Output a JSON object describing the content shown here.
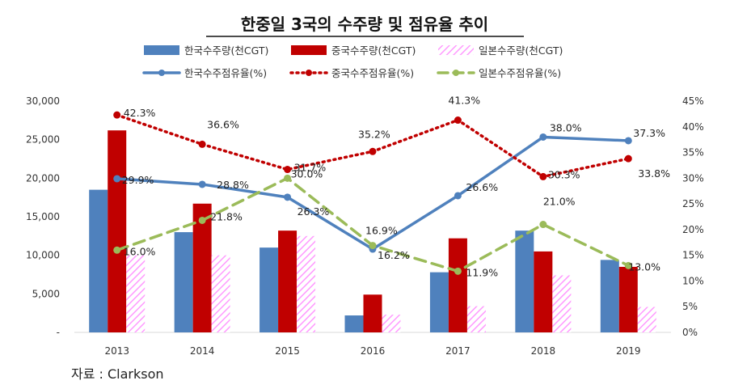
{
  "source": "자료 : Clarkson",
  "chart_data": {
    "type": "bar",
    "title": "한중일 3국의 수주량 및 점유율 추이",
    "categories": [
      "2013",
      "2014",
      "2015",
      "2016",
      "2017",
      "2018",
      "2019"
    ],
    "y_left": {
      "range": [
        0,
        30000
      ],
      "ticks": [
        "-",
        "5,000",
        "10,000",
        "15,000",
        "20,000",
        "25,000",
        "30,000"
      ]
    },
    "y_right": {
      "range": [
        0,
        45
      ],
      "ticks": [
        "0%",
        "5%",
        "10%",
        "15%",
        "20%",
        "25%",
        "30%",
        "35%",
        "40%",
        "45%"
      ]
    },
    "grid": false,
    "legend_position": "top",
    "bar_series": [
      {
        "name": "한국수주량(천CGT)",
        "color": "#4f81bd",
        "values": [
          18500,
          13000,
          11000,
          2200,
          7800,
          13200,
          9400
        ]
      },
      {
        "name": "중국수주량(천CGT)",
        "color": "#c00000",
        "values": [
          26200,
          16700,
          13200,
          4900,
          12200,
          10500,
          8500
        ]
      },
      {
        "name": "일본수주량(천CGT)",
        "color": "#ff99ff",
        "pattern": "hatched",
        "values": [
          10000,
          10000,
          12500,
          2300,
          3400,
          7400,
          3300
        ]
      }
    ],
    "line_series": [
      {
        "name": "한국수주점유율(%)",
        "color": "#4f81bd",
        "style": "solid",
        "axis": "right",
        "values": [
          29.9,
          28.8,
          26.3,
          16.2,
          26.6,
          38.0,
          37.3
        ],
        "labels": [
          "29.9%",
          "28.8%",
          "26.3%",
          "16.2%",
          "26.6%",
          "38.0%",
          "37.3%"
        ]
      },
      {
        "name": "중국수주점유율(%)",
        "color": "#c00000",
        "style": "dotted",
        "axis": "right",
        "values": [
          42.3,
          36.6,
          31.7,
          35.2,
          41.3,
          30.3,
          33.8
        ],
        "labels": [
          "42.3%",
          "36.6%",
          "31.7%",
          "35.2%",
          "41.3%",
          "30.3%",
          "33.8%"
        ]
      },
      {
        "name": "일본수주점유율(%)",
        "color": "#9bbb59",
        "style": "dashed",
        "axis": "right",
        "values": [
          16.0,
          21.8,
          30.0,
          16.9,
          11.9,
          21.0,
          13.0
        ],
        "labels": [
          "16.0%",
          "21.8%",
          "30.0%",
          "16.9%",
          "11.9%",
          "21.0%",
          "13.0%"
        ]
      }
    ]
  }
}
